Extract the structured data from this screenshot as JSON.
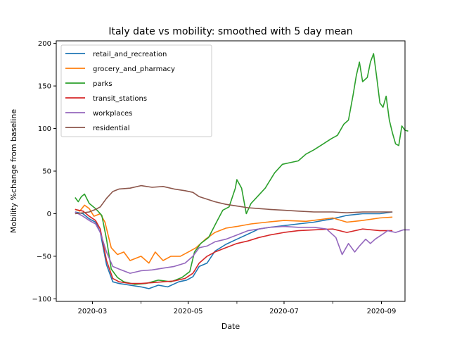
{
  "chart_data": {
    "type": "line",
    "title": "Italy date vs mobility: smoothed with 5 day mean",
    "xlabel": "Date",
    "ylabel": "Mobility %change from baseline",
    "ylim": [
      -103,
      203
    ],
    "xlim": [
      "2020-02-07",
      "2020-09-16"
    ],
    "x_ticks": [
      "2020-03",
      "2020-05",
      "2020-07",
      "2020-09"
    ],
    "y_ticks": [
      -100,
      -50,
      0,
      50,
      100,
      150,
      200
    ],
    "grid": false,
    "legend": "top-left",
    "series": [
      {
        "name": "retail_and_recreation",
        "color": "#1f77b4",
        "points": [
          [
            "2020-02-19",
            2
          ],
          [
            "2020-02-24",
            0
          ],
          [
            "2020-02-28",
            -6
          ],
          [
            "2020-03-03",
            -10
          ],
          [
            "2020-03-06",
            -22
          ],
          [
            "2020-03-10",
            -60
          ],
          [
            "2020-03-14",
            -80
          ],
          [
            "2020-03-18",
            -82
          ],
          [
            "2020-03-25",
            -84
          ],
          [
            "2020-04-01",
            -86
          ],
          [
            "2020-04-06",
            -88
          ],
          [
            "2020-04-12",
            -84
          ],
          [
            "2020-04-18",
            -86
          ],
          [
            "2020-04-25",
            -80
          ],
          [
            "2020-04-30",
            -78
          ],
          [
            "2020-05-04",
            -74
          ],
          [
            "2020-05-08",
            -62
          ],
          [
            "2020-05-13",
            -58
          ],
          [
            "2020-05-18",
            -44
          ],
          [
            "2020-05-25",
            -36
          ],
          [
            "2020-06-01",
            -30
          ],
          [
            "2020-06-08",
            -24
          ],
          [
            "2020-06-15",
            -18
          ],
          [
            "2020-06-22",
            -16
          ],
          [
            "2020-07-01",
            -14
          ],
          [
            "2020-07-10",
            -12
          ],
          [
            "2020-07-20",
            -10
          ],
          [
            "2020-08-01",
            -6
          ],
          [
            "2020-08-10",
            -2
          ],
          [
            "2020-08-20",
            0
          ],
          [
            "2020-08-31",
            0
          ],
          [
            "2020-09-08",
            2
          ]
        ]
      },
      {
        "name": "grocery_and_pharmacy",
        "color": "#ff7f0e",
        "points": [
          [
            "2020-02-19",
            5
          ],
          [
            "2020-02-22",
            3
          ],
          [
            "2020-02-25",
            10
          ],
          [
            "2020-02-28",
            6
          ],
          [
            "2020-03-02",
            -3
          ],
          [
            "2020-03-06",
            0
          ],
          [
            "2020-03-09",
            -10
          ],
          [
            "2020-03-13",
            -40
          ],
          [
            "2020-03-17",
            -48
          ],
          [
            "2020-03-21",
            -45
          ],
          [
            "2020-03-25",
            -55
          ],
          [
            "2020-04-01",
            -50
          ],
          [
            "2020-04-06",
            -58
          ],
          [
            "2020-04-10",
            -45
          ],
          [
            "2020-04-15",
            -55
          ],
          [
            "2020-04-20",
            -50
          ],
          [
            "2020-04-26",
            -50
          ],
          [
            "2020-05-01",
            -45
          ],
          [
            "2020-05-06",
            -40
          ],
          [
            "2020-05-12",
            -30
          ],
          [
            "2020-05-18",
            -22
          ],
          [
            "2020-05-25",
            -17
          ],
          [
            "2020-06-01",
            -15
          ],
          [
            "2020-06-10",
            -12
          ],
          [
            "2020-06-20",
            -10
          ],
          [
            "2020-07-01",
            -8
          ],
          [
            "2020-07-15",
            -9
          ],
          [
            "2020-08-01",
            -5
          ],
          [
            "2020-08-10",
            -10
          ],
          [
            "2020-08-20",
            -8
          ],
          [
            "2020-08-31",
            -5
          ],
          [
            "2020-09-08",
            -4
          ]
        ]
      },
      {
        "name": "parks",
        "color": "#2ca02c",
        "points": [
          [
            "2020-02-19",
            19
          ],
          [
            "2020-02-21",
            14
          ],
          [
            "2020-02-23",
            20
          ],
          [
            "2020-02-25",
            23
          ],
          [
            "2020-02-28",
            12
          ],
          [
            "2020-03-03",
            6
          ],
          [
            "2020-03-07",
            -2
          ],
          [
            "2020-03-10",
            -30
          ],
          [
            "2020-03-13",
            -65
          ],
          [
            "2020-03-17",
            -75
          ],
          [
            "2020-03-21",
            -80
          ],
          [
            "2020-03-28",
            -83
          ],
          [
            "2020-04-04",
            -82
          ],
          [
            "2020-04-12",
            -78
          ],
          [
            "2020-04-20",
            -80
          ],
          [
            "2020-04-27",
            -75
          ],
          [
            "2020-05-02",
            -68
          ],
          [
            "2020-05-05",
            -45
          ],
          [
            "2020-05-09",
            -35
          ],
          [
            "2020-05-14",
            -28
          ],
          [
            "2020-05-19",
            -10
          ],
          [
            "2020-05-23",
            4
          ],
          [
            "2020-05-27",
            8
          ],
          [
            "2020-05-31",
            30
          ],
          [
            "2020-06-01",
            40
          ],
          [
            "2020-06-04",
            30
          ],
          [
            "2020-06-07",
            0
          ],
          [
            "2020-06-10",
            12
          ],
          [
            "2020-06-14",
            20
          ],
          [
            "2020-06-19",
            30
          ],
          [
            "2020-06-25",
            48
          ],
          [
            "2020-06-30",
            58
          ],
          [
            "2020-07-05",
            60
          ],
          [
            "2020-07-10",
            62
          ],
          [
            "2020-07-15",
            70
          ],
          [
            "2020-07-20",
            75
          ],
          [
            "2020-07-26",
            82
          ],
          [
            "2020-07-31",
            88
          ],
          [
            "2020-08-04",
            92
          ],
          [
            "2020-08-08",
            105
          ],
          [
            "2020-08-11",
            110
          ],
          [
            "2020-08-14",
            140
          ],
          [
            "2020-08-16",
            162
          ],
          [
            "2020-08-18",
            178
          ],
          [
            "2020-08-20",
            155
          ],
          [
            "2020-08-23",
            160
          ],
          [
            "2020-08-25",
            178
          ],
          [
            "2020-08-27",
            188
          ],
          [
            "2020-08-29",
            160
          ],
          [
            "2020-08-31",
            130
          ],
          [
            "2020-09-02",
            125
          ],
          [
            "2020-09-04",
            138
          ],
          [
            "2020-09-06",
            110
          ],
          [
            "2020-09-08",
            95
          ],
          [
            "2020-09-10",
            82
          ],
          [
            "2020-09-12",
            80
          ],
          [
            "2020-09-14",
            103
          ],
          [
            "2020-09-16",
            98
          ],
          [
            "2020-09-18",
            97
          ]
        ]
      },
      {
        "name": "transit_stations",
        "color": "#d62728",
        "points": [
          [
            "2020-02-19",
            5
          ],
          [
            "2020-02-24",
            3
          ],
          [
            "2020-02-28",
            -3
          ],
          [
            "2020-03-03",
            -8
          ],
          [
            "2020-03-06",
            -18
          ],
          [
            "2020-03-10",
            -55
          ],
          [
            "2020-03-14",
            -76
          ],
          [
            "2020-03-18",
            -80
          ],
          [
            "2020-03-25",
            -82
          ],
          [
            "2020-04-01",
            -82
          ],
          [
            "2020-04-08",
            -81
          ],
          [
            "2020-04-15",
            -80
          ],
          [
            "2020-04-22",
            -79
          ],
          [
            "2020-04-29",
            -76
          ],
          [
            "2020-05-04",
            -70
          ],
          [
            "2020-05-08",
            -58
          ],
          [
            "2020-05-13",
            -50
          ],
          [
            "2020-05-18",
            -45
          ],
          [
            "2020-05-25",
            -40
          ],
          [
            "2020-06-01",
            -35
          ],
          [
            "2020-06-08",
            -32
          ],
          [
            "2020-06-15",
            -28
          ],
          [
            "2020-06-22",
            -25
          ],
          [
            "2020-07-01",
            -22
          ],
          [
            "2020-07-10",
            -20
          ],
          [
            "2020-07-20",
            -19
          ],
          [
            "2020-08-01",
            -18
          ],
          [
            "2020-08-10",
            -22
          ],
          [
            "2020-08-20",
            -18
          ],
          [
            "2020-08-31",
            -20
          ],
          [
            "2020-09-08",
            -20
          ]
        ]
      },
      {
        "name": "workplaces",
        "color": "#9467bd",
        "points": [
          [
            "2020-02-19",
            2
          ],
          [
            "2020-02-24",
            -3
          ],
          [
            "2020-02-28",
            -8
          ],
          [
            "2020-03-03",
            -12
          ],
          [
            "2020-03-06",
            -22
          ],
          [
            "2020-03-10",
            -45
          ],
          [
            "2020-03-14",
            -62
          ],
          [
            "2020-03-18",
            -65
          ],
          [
            "2020-03-25",
            -70
          ],
          [
            "2020-04-01",
            -67
          ],
          [
            "2020-04-08",
            -66
          ],
          [
            "2020-04-15",
            -64
          ],
          [
            "2020-04-22",
            -62
          ],
          [
            "2020-04-29",
            -58
          ],
          [
            "2020-05-04",
            -50
          ],
          [
            "2020-05-08",
            -40
          ],
          [
            "2020-05-13",
            -38
          ],
          [
            "2020-05-18",
            -33
          ],
          [
            "2020-05-25",
            -30
          ],
          [
            "2020-06-01",
            -25
          ],
          [
            "2020-06-08",
            -20
          ],
          [
            "2020-06-15",
            -18
          ],
          [
            "2020-06-22",
            -16
          ],
          [
            "2020-07-01",
            -15
          ],
          [
            "2020-07-10",
            -16
          ],
          [
            "2020-07-20",
            -16
          ],
          [
            "2020-07-28",
            -18
          ],
          [
            "2020-08-03",
            -28
          ],
          [
            "2020-08-07",
            -48
          ],
          [
            "2020-08-11",
            -35
          ],
          [
            "2020-08-15",
            -45
          ],
          [
            "2020-08-18",
            -38
          ],
          [
            "2020-08-22",
            -30
          ],
          [
            "2020-08-25",
            -35
          ],
          [
            "2020-08-28",
            -30
          ],
          [
            "2020-09-01",
            -25
          ],
          [
            "2020-09-05",
            -20
          ],
          [
            "2020-09-10",
            -22
          ],
          [
            "2020-09-15",
            -19
          ],
          [
            "2020-09-19",
            -19
          ]
        ]
      },
      {
        "name": "residential",
        "color": "#8c564b",
        "points": [
          [
            "2020-02-19",
            0
          ],
          [
            "2020-02-24",
            1
          ],
          [
            "2020-02-28",
            2
          ],
          [
            "2020-03-03",
            5
          ],
          [
            "2020-03-06",
            8
          ],
          [
            "2020-03-10",
            18
          ],
          [
            "2020-03-14",
            26
          ],
          [
            "2020-03-18",
            29
          ],
          [
            "2020-03-25",
            30
          ],
          [
            "2020-04-01",
            33
          ],
          [
            "2020-04-08",
            31
          ],
          [
            "2020-04-15",
            32
          ],
          [
            "2020-04-22",
            29
          ],
          [
            "2020-04-29",
            27
          ],
          [
            "2020-05-04",
            25
          ],
          [
            "2020-05-08",
            20
          ],
          [
            "2020-05-13",
            17
          ],
          [
            "2020-05-18",
            14
          ],
          [
            "2020-05-25",
            11
          ],
          [
            "2020-06-01",
            9
          ],
          [
            "2020-06-08",
            7
          ],
          [
            "2020-06-15",
            6
          ],
          [
            "2020-06-22",
            5
          ],
          [
            "2020-07-01",
            4
          ],
          [
            "2020-07-10",
            3
          ],
          [
            "2020-07-20",
            2
          ],
          [
            "2020-08-01",
            2
          ],
          [
            "2020-08-10",
            1
          ],
          [
            "2020-08-20",
            2
          ],
          [
            "2020-08-31",
            2
          ],
          [
            "2020-09-08",
            2
          ]
        ]
      }
    ]
  }
}
